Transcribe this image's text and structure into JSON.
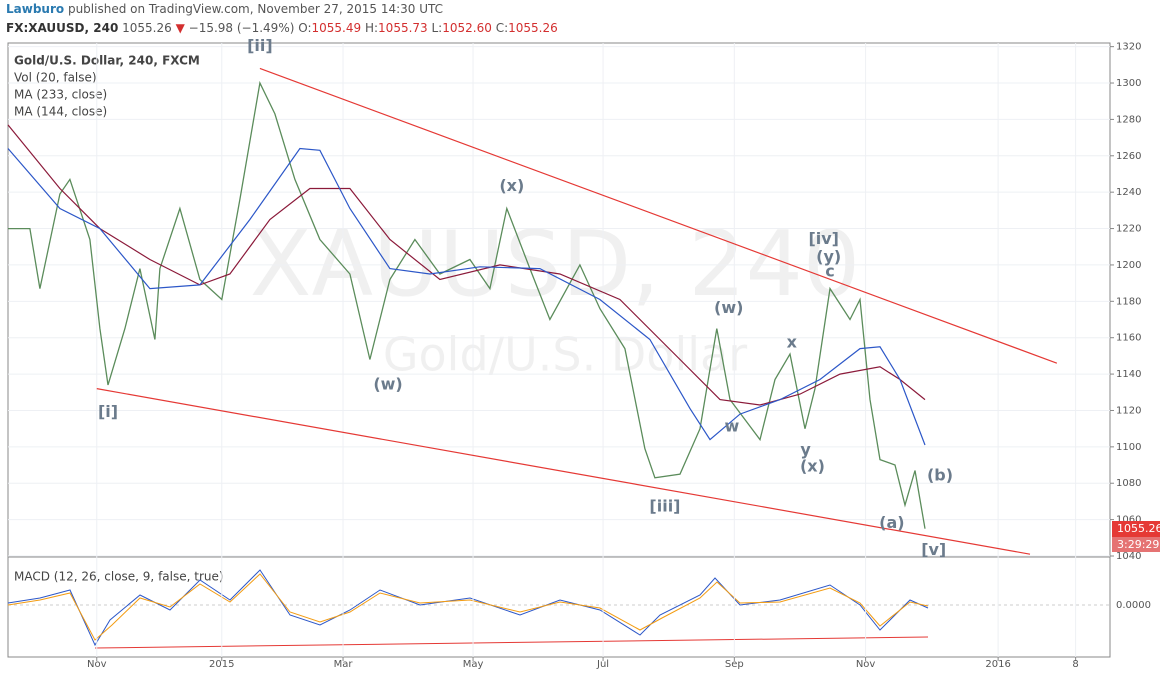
{
  "header": {
    "author": "Lawburo",
    "published": "published on TradingView.com, November 27, 2015 14:30 UTC",
    "symbol": "FX:XAUUSD, 240",
    "last": "1055.26",
    "arrow": "▼",
    "change": "−15.98 (−1.49%)",
    "o_label": "O:",
    "o": "1055.49",
    "h_label": "H:",
    "h": "1055.73",
    "l_label": "L:",
    "l": "1052.60",
    "c_label": "C:",
    "c": "1055.26"
  },
  "legend": [
    "Gold/U.S. Dollar, 240, FXCM",
    "Vol (20, false)",
    "MA (233, close)",
    "MA (144, close)"
  ],
  "watermark": {
    "big": "XAUUSD, 240",
    "small": "Gold/U.S. Dollar"
  },
  "price_tag": {
    "price": "1055.26",
    "timer": "3:29:29"
  },
  "macd": {
    "label": "MACD (12, 26, close, 9, false, true)",
    "zero_label": "0.0000"
  },
  "chart_data": {
    "type": "line",
    "grid": true,
    "xlim": [
      -1.42,
      16.21
    ],
    "ylim": [
      1040,
      1322
    ],
    "xticks": [
      {
        "value": 0,
        "label": "Nov"
      },
      {
        "value": 2.0,
        "label": "2015"
      },
      {
        "value": 3.94,
        "label": "Mar"
      },
      {
        "value": 6.02,
        "label": "May"
      },
      {
        "value": 8.1,
        "label": "Jul"
      },
      {
        "value": 10.2,
        "label": "Sep"
      },
      {
        "value": 12.3,
        "label": "Nov"
      },
      {
        "value": 14.42,
        "label": "2016"
      },
      {
        "value": 15.66,
        "label": "8"
      }
    ],
    "yticks": [
      1040,
      1060,
      1080,
      1100,
      1120,
      1140,
      1160,
      1180,
      1200,
      1220,
      1240,
      1260,
      1280,
      1300,
      1320
    ],
    "series": [
      {
        "name": "Gold/U.S. Dollar, 240, FXCM",
        "color": "#5b8c5b",
        "x": [
          -1.42,
          -1.07,
          -0.91,
          -0.59,
          -0.43,
          -0.11,
          0.05,
          0.18,
          0.45,
          0.69,
          0.93,
          1.01,
          1.33,
          1.65,
          2.0,
          2.29,
          2.61,
          2.85,
          3.17,
          3.57,
          4.05,
          4.37,
          4.69,
          5.09,
          5.49,
          5.97,
          6.29,
          6.56,
          6.93,
          7.25,
          7.73,
          8.05,
          8.45,
          8.77,
          8.93,
          9.33,
          9.65,
          9.92,
          10.13,
          10.37,
          10.61,
          10.85,
          11.09,
          11.33,
          11.49,
          11.73,
          12.05,
          12.21,
          12.37,
          12.53,
          12.77,
          12.93,
          13.09,
          13.25
        ],
        "values": [
          1220,
          1220,
          1187,
          1239,
          1247,
          1214,
          1165,
          1134,
          1165,
          1198,
          1159,
          1198,
          1231,
          1192,
          1181,
          1236,
          1300,
          1283,
          1247,
          1214,
          1195,
          1148,
          1192,
          1214,
          1195,
          1203,
          1187,
          1231,
          1198,
          1170,
          1200,
          1176,
          1154,
          1099,
          1083,
          1085,
          1110,
          1165,
          1126,
          1115,
          1104,
          1137,
          1151,
          1110,
          1132,
          1187,
          1170,
          1181,
          1126,
          1093,
          1090,
          1068,
          1087,
          1055
        ]
      },
      {
        "name": "MA (233, close)",
        "color": "#8b1a3a",
        "x": [
          -1.42,
          -0.59,
          0.05,
          0.85,
          1.65,
          2.13,
          2.77,
          3.41,
          4.05,
          4.69,
          5.49,
          6.45,
          7.41,
          8.37,
          9.33,
          9.97,
          10.61,
          11.25,
          11.89,
          12.53,
          12.85,
          13.25
        ],
        "values": [
          1277,
          1242,
          1220,
          1203,
          1189,
          1195,
          1225,
          1242,
          1242,
          1214,
          1192,
          1200,
          1195,
          1181,
          1148,
          1126,
          1123,
          1129,
          1140,
          1144,
          1137,
          1126
        ]
      },
      {
        "name": "MA (144, close)",
        "color": "#2c57c8",
        "x": [
          -1.42,
          -0.59,
          0.05,
          0.85,
          1.65,
          2.45,
          3.25,
          3.57,
          4.05,
          4.69,
          5.33,
          6.13,
          7.09,
          8.05,
          8.85,
          9.49,
          9.81,
          10.29,
          10.93,
          11.57,
          12.21,
          12.53,
          12.85,
          13.25
        ],
        "values": [
          1264,
          1231,
          1220,
          1187,
          1189,
          1225,
          1264,
          1263,
          1231,
          1198,
          1195,
          1199,
          1198,
          1181,
          1159,
          1121,
          1104,
          1118,
          1126,
          1137,
          1154,
          1155,
          1137,
          1101
        ]
      }
    ],
    "trendlines": [
      {
        "color": "#e53935",
        "x": [
          2.61,
          15.36
        ],
        "y": [
          1308,
          1146
        ]
      },
      {
        "color": "#e53935",
        "x": [
          0,
          14.93
        ],
        "y": [
          1132,
          1041
        ]
      }
    ],
    "annotations": [
      {
        "text": "[i]",
        "x": 0.18,
        "y": 1119
      },
      {
        "text": "[ii]",
        "x": 2.61,
        "y": 1320
      },
      {
        "text": "(w)",
        "x": 4.66,
        "y": 1134
      },
      {
        "text": "(x)",
        "x": 6.64,
        "y": 1243
      },
      {
        "text": "[iii]",
        "x": 9.09,
        "y": 1067
      },
      {
        "text": "(w)",
        "x": 10.11,
        "y": 1176
      },
      {
        "text": "w",
        "x": 10.16,
        "y": 1111
      },
      {
        "text": "x",
        "x": 11.12,
        "y": 1157
      },
      {
        "text": "y",
        "x": 11.34,
        "y": 1098
      },
      {
        "text": "(x)",
        "x": 11.45,
        "y": 1089
      },
      {
        "text": "[iv]",
        "x": 11.63,
        "y": 1214
      },
      {
        "text": "(y)",
        "x": 11.71,
        "y": 1204
      },
      {
        "text": "c",
        "x": 11.73,
        "y": 1196
      },
      {
        "text": "(b)",
        "x": 13.49,
        "y": 1084
      },
      {
        "text": "(a)",
        "x": 12.72,
        "y": 1058
      },
      {
        "text": "[v]",
        "x": 13.39,
        "y": 1043
      }
    ]
  }
}
